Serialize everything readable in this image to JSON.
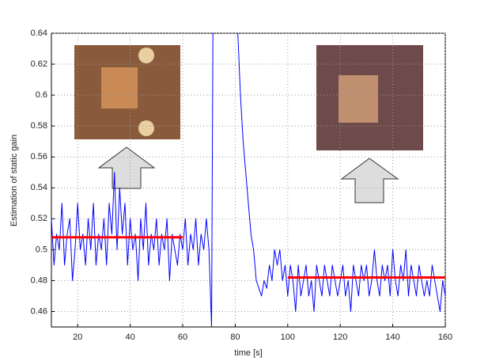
{
  "chart_data": {
    "type": "line",
    "xlabel": "time [s]",
    "ylabel": "Estimation of static gain",
    "xlim": [
      10,
      160
    ],
    "ylim": [
      0.45,
      0.64
    ],
    "xticks": [
      20,
      40,
      60,
      80,
      100,
      120,
      140,
      160
    ],
    "yticks": [
      0.46,
      0.48,
      0.5,
      0.52,
      0.54,
      0.56,
      0.58,
      0.6,
      0.62,
      0.64
    ],
    "grid": true,
    "series": [
      {
        "color": "#0000ff",
        "x": [
          10,
          11,
          12,
          13,
          14,
          15,
          16,
          17,
          18,
          19,
          20,
          21,
          22,
          23,
          24,
          25,
          26,
          27,
          28,
          29,
          30,
          31,
          32,
          33,
          34,
          35,
          36,
          37,
          38,
          39,
          40,
          41,
          42,
          43,
          44,
          45,
          46,
          47,
          48,
          49,
          50,
          51,
          52,
          53,
          54,
          55,
          56,
          57,
          58,
          59,
          60,
          61,
          62,
          63,
          64,
          65,
          66,
          67,
          68,
          69,
          70,
          71,
          71.5,
          76,
          81,
          82,
          83,
          84,
          85,
          86,
          87,
          88,
          89,
          90,
          91,
          92,
          93,
          94,
          95,
          96,
          97,
          98,
          99,
          100,
          101,
          102,
          103,
          104,
          105,
          106,
          107,
          108,
          109,
          110,
          111,
          112,
          113,
          114,
          115,
          116,
          117,
          118,
          119,
          120,
          121,
          122,
          123,
          124,
          125,
          126,
          127,
          128,
          129,
          130,
          131,
          132,
          133,
          134,
          135,
          136,
          137,
          138,
          139,
          140,
          141,
          142,
          143,
          144,
          145,
          146,
          147,
          148,
          149,
          150,
          151,
          152,
          153,
          154,
          155,
          156,
          157,
          158,
          159,
          160
        ],
        "values": [
          0.52,
          0.49,
          0.51,
          0.5,
          0.53,
          0.49,
          0.51,
          0.52,
          0.48,
          0.5,
          0.53,
          0.5,
          0.51,
          0.49,
          0.52,
          0.5,
          0.53,
          0.49,
          0.51,
          0.5,
          0.52,
          0.49,
          0.53,
          0.51,
          0.55,
          0.5,
          0.54,
          0.51,
          0.53,
          0.49,
          0.52,
          0.5,
          0.51,
          0.48,
          0.52,
          0.5,
          0.53,
          0.49,
          0.51,
          0.5,
          0.52,
          0.49,
          0.51,
          0.5,
          0.52,
          0.48,
          0.51,
          0.5,
          0.49,
          0.51,
          0.5,
          0.52,
          0.49,
          0.51,
          0.5,
          0.52,
          0.49,
          0.51,
          0.5,
          0.52,
          0.5,
          0.45,
          0.64,
          null,
          0.64,
          0.6,
          0.57,
          0.55,
          0.53,
          0.51,
          0.5,
          0.48,
          0.475,
          0.47,
          0.48,
          0.475,
          0.49,
          0.48,
          0.5,
          0.49,
          0.5,
          0.48,
          0.49,
          0.47,
          0.49,
          0.48,
          0.46,
          0.49,
          0.47,
          0.48,
          0.49,
          0.47,
          0.48,
          0.46,
          0.49,
          0.48,
          0.47,
          0.49,
          0.48,
          0.47,
          0.49,
          0.48,
          0.47,
          0.48,
          0.49,
          0.47,
          0.48,
          0.46,
          0.49,
          0.48,
          0.47,
          0.49,
          0.48,
          0.49,
          0.47,
          0.48,
          0.5,
          0.48,
          0.47,
          0.49,
          0.48,
          0.49,
          0.47,
          0.5,
          0.48,
          0.47,
          0.49,
          0.48,
          0.5,
          0.47,
          0.49,
          0.48,
          0.47,
          0.49,
          0.48,
          0.47,
          0.48,
          0.47,
          0.49,
          0.48,
          0.47,
          0.46,
          0.48,
          0.47
        ]
      },
      {
        "color": "#ff0000",
        "x": [
          10,
          60
        ],
        "values": [
          0.508,
          0.508
        ]
      },
      {
        "color": "#ff0000",
        "x": [
          100,
          160
        ],
        "values": [
          0.482,
          0.482
        ]
      }
    ]
  }
}
